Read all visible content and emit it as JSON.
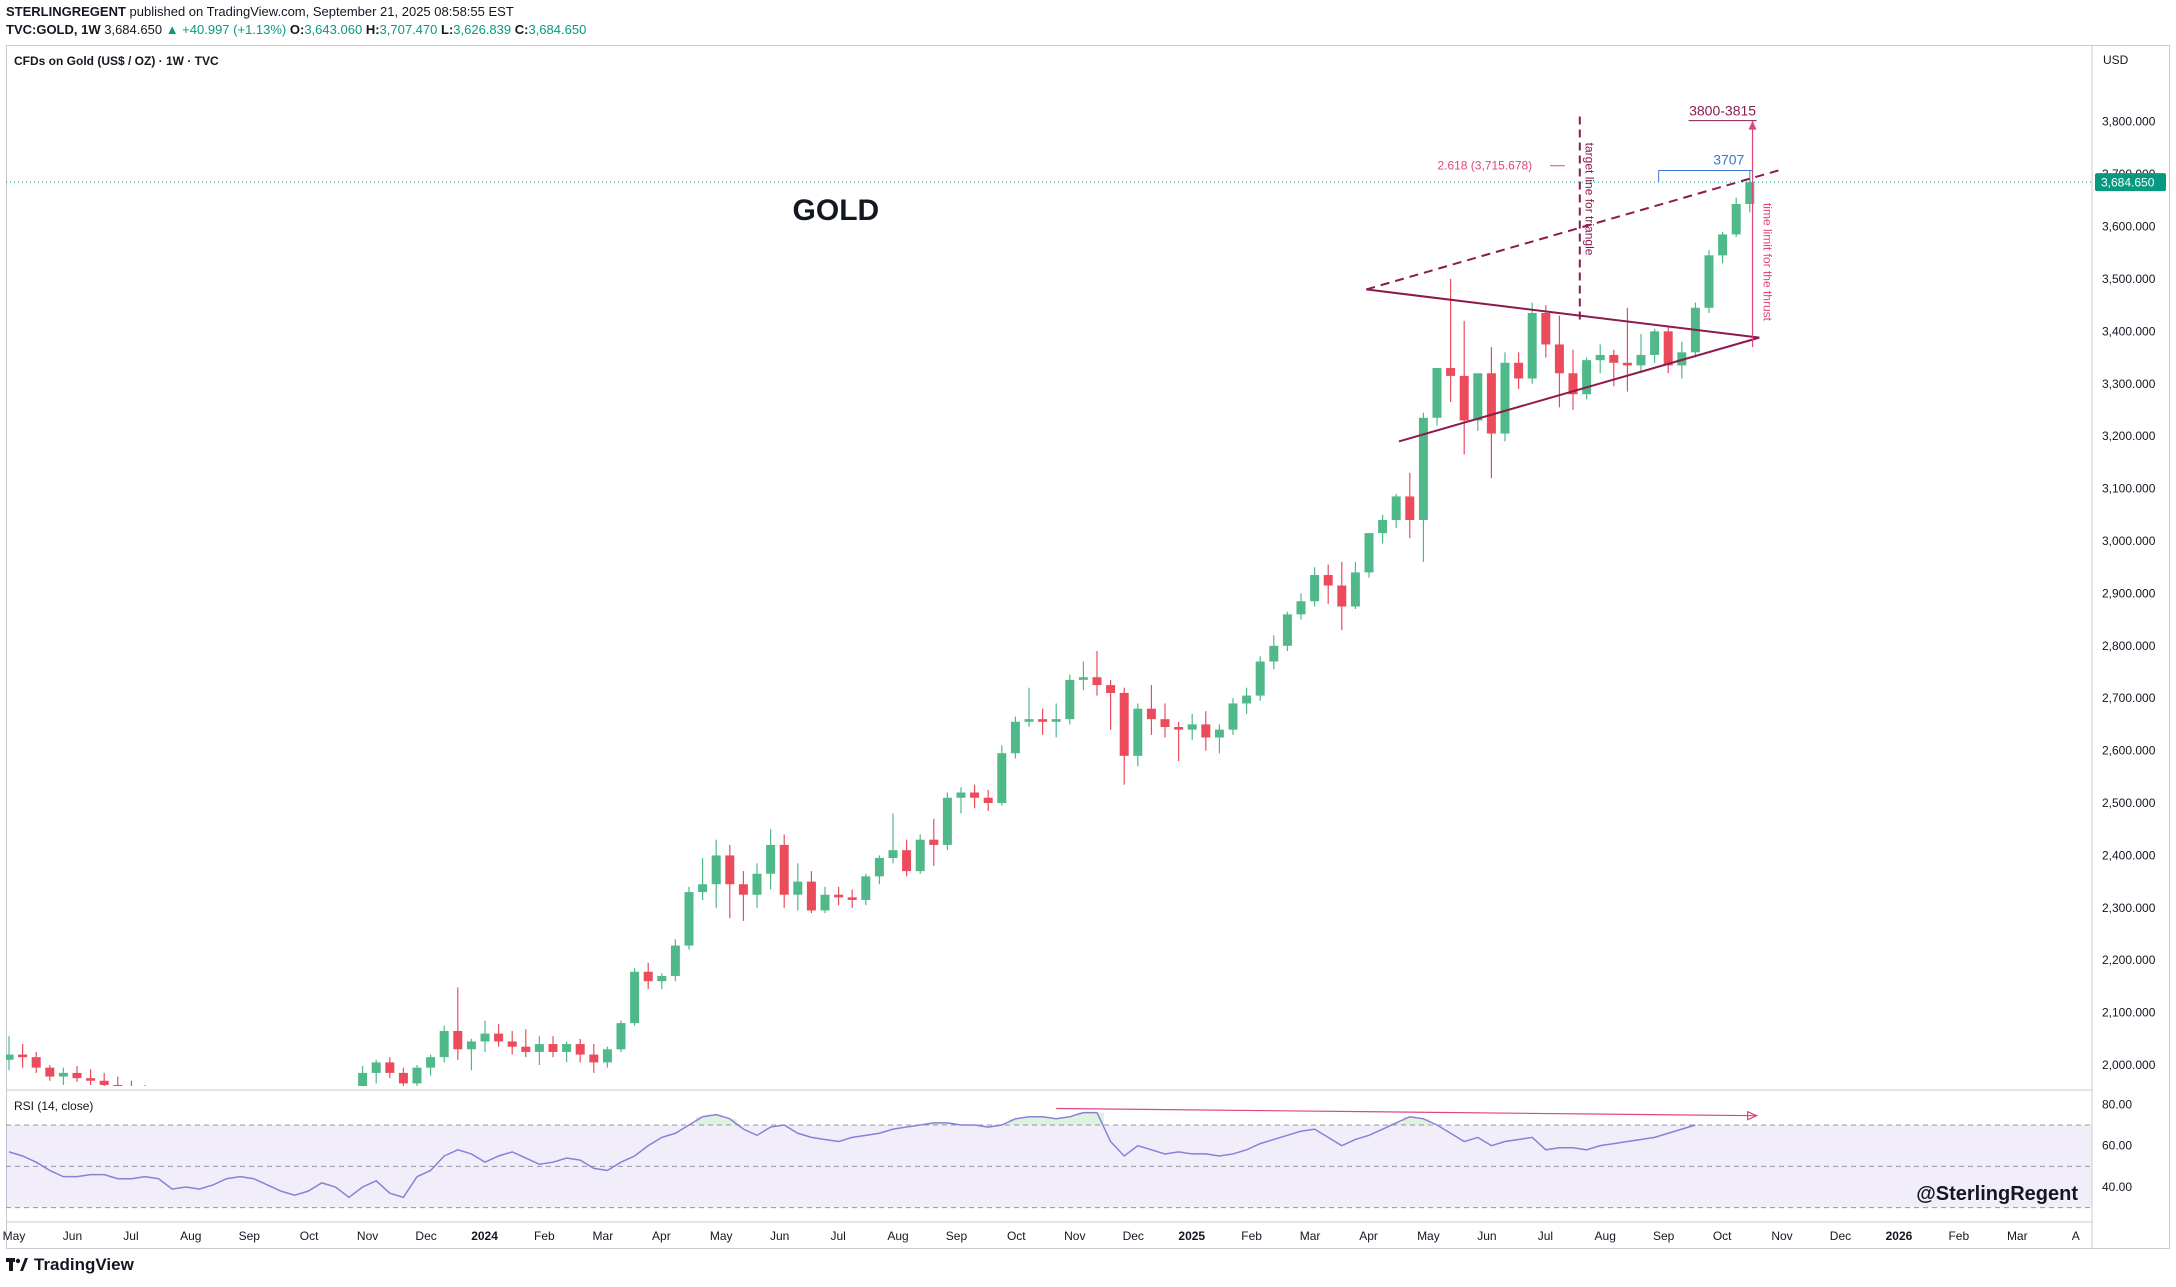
{
  "header": {
    "publisher": "STERLINGREGENT",
    "published_text": "published on TradingView.com, September 21, 2025 08:58:55 EST",
    "symbol": "TVC:GOLD, 1W",
    "last": "3,684.650",
    "change": "▲ +40.997 (+1.13%)",
    "o_label": "O:",
    "o_value": "3,643.060",
    "h_label": "H:",
    "h_value": "3,707.470",
    "l_label": "L:",
    "l_value": "3,626.839",
    "c_label": "C:",
    "c_value": "3,684.650"
  },
  "legend": "CFDs on Gold (US$ / OZ) · 1W · TVC",
  "currency": "USD",
  "footer_brand": "TradingView",
  "colors": {
    "up": "#4fb98a",
    "down": "#ec4b5c",
    "triangle": "#8c1a4f",
    "rsi_line": "#8b7fd9",
    "annotation_pink": "#e0457c",
    "price_line": "#089981",
    "target_blue": "#3a75d8"
  },
  "chart_data": {
    "type": "candlestick",
    "interval": "1W",
    "ylim": [
      1960,
      3830
    ],
    "price_ticks": [
      "2,000.000",
      "2,100.000",
      "2,200.000",
      "2,300.000",
      "2,400.000",
      "2,500.000",
      "2,600.000",
      "2,700.000",
      "2,800.000",
      "2,900.000",
      "3,000.000",
      "3,100.000",
      "3,200.000",
      "3,300.000",
      "3,400.000",
      "3,500.000",
      "3,600.000",
      "3,700.000",
      "3,800.000"
    ],
    "price_tick_values": [
      2000,
      2100,
      2200,
      2300,
      2400,
      2500,
      2600,
      2700,
      2800,
      2900,
      3000,
      3100,
      3200,
      3300,
      3400,
      3500,
      3600,
      3700,
      3800
    ],
    "time_labels": [
      "May",
      "Jun",
      "Jul",
      "Aug",
      "Sep",
      "Oct",
      "Nov",
      "Dec",
      "2024",
      "Feb",
      "Mar",
      "Apr",
      "May",
      "Jun",
      "Jul",
      "Aug",
      "Sep",
      "Oct",
      "Nov",
      "Dec",
      "2025",
      "Feb",
      "Mar",
      "Apr",
      "May",
      "Jun",
      "Jul",
      "Aug",
      "Sep",
      "Oct",
      "Nov",
      "Dec",
      "2026",
      "Feb",
      "Mar",
      "A"
    ],
    "time_label_weeks": [
      0,
      4.3,
      8.6,
      13,
      17.3,
      21.7,
      26,
      30.3,
      34.6,
      39,
      43.3,
      47.6,
      52,
      56.3,
      60.6,
      65,
      69.3,
      73.7,
      78,
      82.3,
      86.6,
      91,
      95.3,
      99.6,
      104,
      108.3,
      112.6,
      117,
      121.3,
      125.6,
      130,
      134.3,
      138.6,
      143,
      147.3,
      151.6
    ],
    "time_labels_bold": [
      "2024",
      "2025",
      "2026"
    ],
    "current_price_label": "3,684.650",
    "current_price": 3684.65,
    "candles": [
      [
        2010,
        2055,
        1990,
        2020
      ],
      [
        2020,
        2040,
        1995,
        2015
      ],
      [
        2015,
        2025,
        1985,
        1995
      ],
      [
        1995,
        2000,
        1970,
        1978
      ],
      [
        1978,
        1995,
        1962,
        1985
      ],
      [
        1985,
        1998,
        1968,
        1975
      ],
      [
        1975,
        1992,
        1962,
        1970
      ],
      [
        1970,
        1985,
        1955,
        1962
      ],
      [
        1962,
        1978,
        1948,
        1955
      ],
      [
        1955,
        1970,
        1940,
        1945
      ],
      [
        1945,
        1962,
        1930,
        1938
      ],
      [
        1938,
        1955,
        1920,
        1925
      ],
      [
        1925,
        1942,
        1910,
        1918
      ],
      [
        1918,
        1938,
        1902,
        1910
      ],
      [
        1910,
        1925,
        1895,
        1902
      ],
      [
        1902,
        1920,
        1888,
        1912
      ],
      [
        1912,
        1935,
        1900,
        1925
      ],
      [
        1925,
        1945,
        1908,
        1915
      ],
      [
        1915,
        1930,
        1895,
        1902
      ],
      [
        1902,
        1918,
        1888,
        1895
      ],
      [
        1895,
        1910,
        1880,
        1905
      ],
      [
        1905,
        1920,
        1885,
        1890
      ],
      [
        1890,
        1905,
        1870,
        1880
      ],
      [
        1880,
        1900,
        1865,
        1890
      ],
      [
        1890,
        1915,
        1875,
        1908
      ],
      [
        1908,
        1935,
        1895,
        1930
      ],
      [
        1930,
        1998,
        1920,
        1985
      ],
      [
        1985,
        2010,
        1965,
        2005
      ],
      [
        2005,
        2015,
        1975,
        1985
      ],
      [
        1985,
        1995,
        1958,
        1965
      ],
      [
        1965,
        2000,
        1960,
        1995
      ],
      [
        1995,
        2020,
        1980,
        2015
      ],
      [
        2015,
        2075,
        2005,
        2065
      ],
      [
        2065,
        2148,
        2010,
        2030
      ],
      [
        2030,
        2050,
        1990,
        2045
      ],
      [
        2045,
        2085,
        2025,
        2060
      ],
      [
        2060,
        2078,
        2035,
        2045
      ],
      [
        2045,
        2065,
        2020,
        2035
      ],
      [
        2035,
        2068,
        2015,
        2025
      ],
      [
        2025,
        2055,
        2000,
        2040
      ],
      [
        2040,
        2055,
        2015,
        2025
      ],
      [
        2025,
        2045,
        2005,
        2040
      ],
      [
        2040,
        2050,
        2005,
        2020
      ],
      [
        2020,
        2040,
        1985,
        2005
      ],
      [
        2005,
        2035,
        1995,
        2030
      ],
      [
        2030,
        2085,
        2025,
        2080
      ],
      [
        2080,
        2185,
        2075,
        2178
      ],
      [
        2178,
        2195,
        2145,
        2160
      ],
      [
        2160,
        2175,
        2145,
        2170
      ],
      [
        2170,
        2240,
        2160,
        2228
      ],
      [
        2228,
        2340,
        2220,
        2330
      ],
      [
        2330,
        2395,
        2315,
        2345
      ],
      [
        2345,
        2430,
        2300,
        2400
      ],
      [
        2400,
        2420,
        2280,
        2345
      ],
      [
        2345,
        2370,
        2275,
        2325
      ],
      [
        2325,
        2385,
        2300,
        2365
      ],
      [
        2365,
        2450,
        2335,
        2420
      ],
      [
        2420,
        2440,
        2300,
        2325
      ],
      [
        2325,
        2385,
        2295,
        2350
      ],
      [
        2350,
        2370,
        2290,
        2295
      ],
      [
        2295,
        2340,
        2290,
        2325
      ],
      [
        2325,
        2340,
        2305,
        2320
      ],
      [
        2320,
        2335,
        2300,
        2315
      ],
      [
        2315,
        2365,
        2305,
        2360
      ],
      [
        2360,
        2400,
        2345,
        2395
      ],
      [
        2395,
        2480,
        2385,
        2410
      ],
      [
        2410,
        2430,
        2360,
        2370
      ],
      [
        2370,
        2440,
        2365,
        2430
      ],
      [
        2430,
        2470,
        2380,
        2420
      ],
      [
        2420,
        2520,
        2410,
        2510
      ],
      [
        2510,
        2530,
        2480,
        2520
      ],
      [
        2520,
        2535,
        2490,
        2510
      ],
      [
        2510,
        2525,
        2485,
        2500
      ],
      [
        2500,
        2610,
        2495,
        2595
      ],
      [
        2595,
        2665,
        2585,
        2655
      ],
      [
        2655,
        2720,
        2645,
        2660
      ],
      [
        2660,
        2680,
        2630,
        2655
      ],
      [
        2655,
        2690,
        2625,
        2660
      ],
      [
        2660,
        2745,
        2650,
        2735
      ],
      [
        2735,
        2770,
        2715,
        2740
      ],
      [
        2740,
        2790,
        2705,
        2725
      ],
      [
        2725,
        2735,
        2640,
        2710
      ],
      [
        2710,
        2720,
        2535,
        2590
      ],
      [
        2590,
        2690,
        2570,
        2680
      ],
      [
        2680,
        2725,
        2630,
        2660
      ],
      [
        2660,
        2690,
        2625,
        2645
      ],
      [
        2645,
        2655,
        2580,
        2640
      ],
      [
        2640,
        2670,
        2620,
        2650
      ],
      [
        2650,
        2675,
        2600,
        2625
      ],
      [
        2625,
        2650,
        2595,
        2640
      ],
      [
        2640,
        2700,
        2630,
        2690
      ],
      [
        2690,
        2720,
        2670,
        2705
      ],
      [
        2705,
        2780,
        2695,
        2770
      ],
      [
        2770,
        2820,
        2755,
        2800
      ],
      [
        2800,
        2865,
        2790,
        2860
      ],
      [
        2860,
        2900,
        2850,
        2885
      ],
      [
        2885,
        2950,
        2875,
        2935
      ],
      [
        2935,
        2955,
        2880,
        2915
      ],
      [
        2915,
        2960,
        2830,
        2875
      ],
      [
        2875,
        2960,
        2870,
        2940
      ],
      [
        2940,
        3000,
        2930,
        3015
      ],
      [
        3015,
        3050,
        2995,
        3040
      ],
      [
        3040,
        3090,
        3025,
        3085
      ],
      [
        3085,
        3130,
        3005,
        3040
      ],
      [
        3040,
        3245,
        2960,
        3235
      ],
      [
        3235,
        3330,
        3220,
        3330
      ],
      [
        3330,
        3500,
        3265,
        3315
      ],
      [
        3315,
        3420,
        3165,
        3230
      ],
      [
        3230,
        3305,
        3210,
        3320
      ],
      [
        3320,
        3370,
        3120,
        3205
      ],
      [
        3205,
        3360,
        3190,
        3340
      ],
      [
        3340,
        3360,
        3290,
        3310
      ],
      [
        3310,
        3455,
        3300,
        3435
      ],
      [
        3435,
        3450,
        3350,
        3375
      ],
      [
        3375,
        3430,
        3255,
        3320
      ],
      [
        3320,
        3365,
        3250,
        3280
      ],
      [
        3280,
        3350,
        3270,
        3345
      ],
      [
        3345,
        3375,
        3320,
        3355
      ],
      [
        3355,
        3365,
        3295,
        3340
      ],
      [
        3340,
        3445,
        3285,
        3335
      ],
      [
        3335,
        3395,
        3320,
        3355
      ],
      [
        3355,
        3405,
        3340,
        3400
      ],
      [
        3400,
        3410,
        3320,
        3335
      ],
      [
        3335,
        3380,
        3310,
        3360
      ],
      [
        3360,
        3455,
        3350,
        3445
      ],
      [
        3445,
        3555,
        3435,
        3545
      ],
      [
        3545,
        3590,
        3530,
        3585
      ],
      [
        3585,
        3655,
        3580,
        3643
      ],
      [
        3643,
        3707.47,
        3626.84,
        3684.65
      ]
    ],
    "drawings": {
      "title_text": "GOLD",
      "fib_label": "2.618 (3,715.678)",
      "target_value_label": "3707",
      "target_zone_label": "3800-3815",
      "triangle_target_label": "target line for triangle",
      "time_limit_label": "time limit for the thrust"
    },
    "rsi": {
      "label": "RSI (14, close)",
      "ylim": [
        25,
        85
      ],
      "ticks": [
        "80.00",
        "60.00",
        "40.00"
      ],
      "tick_values": [
        80,
        60,
        40
      ],
      "bands": [
        70,
        50,
        30
      ],
      "values": [
        57,
        55,
        52,
        48,
        45,
        45,
        46,
        46,
        44,
        44,
        45,
        44,
        39,
        40,
        39,
        41,
        44,
        45,
        44,
        41,
        38,
        36,
        38,
        42,
        40,
        35,
        40,
        43,
        37,
        35,
        45,
        48,
        55,
        58,
        56,
        52,
        55,
        57,
        54,
        51,
        52,
        54,
        53,
        49,
        48,
        52,
        55,
        60,
        64,
        66,
        70,
        74,
        75,
        73,
        68,
        65,
        69,
        70,
        66,
        64,
        63,
        62,
        64,
        65,
        66,
        68,
        69,
        70,
        71,
        71,
        70,
        70,
        69,
        70,
        73,
        74,
        74,
        73,
        74,
        76,
        76,
        62,
        55,
        60,
        58,
        56,
        57,
        56,
        56,
        55,
        56,
        58,
        61,
        63,
        65,
        67,
        68,
        64,
        60,
        63,
        65,
        68,
        71,
        74,
        73,
        70,
        66,
        62,
        64,
        60,
        62,
        63,
        64,
        58,
        59,
        59,
        58,
        60,
        61,
        62,
        63,
        64,
        66,
        68,
        70
      ],
      "divergence_label": "",
      "signature": "@SterlingRegent"
    }
  }
}
